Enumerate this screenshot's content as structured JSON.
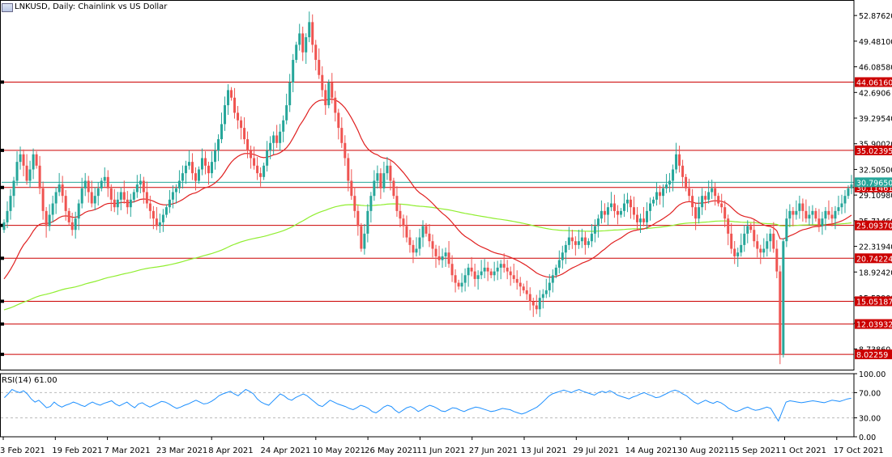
{
  "header": {
    "title": "LNKUSD, Daily:  Chainlink vs US Dollar"
  },
  "rsi": {
    "title": "RSI(14) 61.00"
  },
  "colors": {
    "bull": "#26a69a",
    "bear": "#ef5350",
    "ma_fast": "#e02020",
    "ma_slow": "#90ee30",
    "level_line": "#cc0000",
    "rsi_line": "#1e90ff",
    "current_price_line": "#26a69a"
  },
  "chart_data": {
    "type": "candlestick",
    "title": "LNKUSD, Daily:  Chainlink vs US Dollar",
    "ylim": [
      6.0,
      54.5
    ],
    "y_ticks": [
      "52.87620",
      "49.48100",
      "46.08580",
      "42.6906",
      "39.29540",
      "35.90020",
      "32.50500",
      "29.10980",
      "25.71460",
      "22.31940",
      "18.92420",
      "15.52900",
      "12.13380",
      "8.73860"
    ],
    "x_ticks": [
      "3 Feb 2021",
      "19 Feb 2021",
      "7 Mar 2021",
      "23 Mar 2021",
      "8 Apr 2021",
      "24 Apr 2021",
      "10 May 2021",
      "26 May 2021",
      "11 Jun 2021",
      "27 Jun 2021",
      "13 Jul 2021",
      "29 Jul 2021",
      "14 Aug 2021",
      "30 Aug 2021",
      "15 Sep 2021",
      "1 Oct 2021",
      "17 Oct 2021"
    ],
    "levels": [
      44.0616,
      35.02395,
      30.11461,
      25.0937,
      20.74224,
      15.05187,
      12.03932,
      8.02259
    ],
    "level_labels": [
      "44.06160",
      "35.02395",
      "30.11461",
      "25.09370",
      "20.74224",
      "15.05187",
      "12.03932",
      "8.02259"
    ],
    "current_price": 30.7965,
    "current_price_label": "30.79650",
    "closes": [
      25.5,
      27.0,
      29.0,
      31.0,
      33.5,
      34.5,
      33.0,
      31.0,
      32.5,
      34.5,
      33.0,
      30.0,
      27.0,
      25.0,
      26.5,
      28.0,
      29.5,
      30.5,
      29.0,
      27.0,
      25.5,
      24.5,
      26.0,
      28.0,
      30.0,
      31.0,
      29.5,
      28.0,
      29.0,
      30.0,
      31.0,
      31.5,
      30.0,
      28.5,
      27.5,
      28.5,
      29.5,
      28.5,
      27.5,
      28.5,
      29.5,
      30.5,
      31.0,
      29.5,
      28.0,
      27.0,
      26.0,
      25.0,
      25.5,
      26.5,
      27.5,
      28.5,
      29.5,
      30.0,
      31.0,
      32.0,
      33.0,
      33.5,
      32.0,
      31.0,
      32.5,
      34.0,
      33.0,
      32.0,
      33.5,
      35.0,
      36.5,
      38.5,
      41.0,
      43.0,
      42.0,
      40.0,
      39.0,
      38.0,
      36.5,
      35.0,
      34.0,
      33.0,
      32.0,
      31.5,
      33.0,
      35.0,
      36.0,
      37.0,
      36.0,
      37.5,
      39.0,
      41.0,
      44.0,
      47.0,
      49.0,
      50.5,
      48.0,
      50.0,
      52.0,
      49.0,
      47.0,
      45.0,
      43.0,
      41.0,
      44.0,
      42.0,
      40.0,
      38.0,
      36.0,
      34.0,
      31.0,
      29.0,
      27.0,
      25.0,
      22.0,
      24.0,
      27.0,
      29.0,
      31.0,
      32.0,
      30.0,
      32.0,
      33.0,
      31.0,
      29.0,
      27.0,
      26.0,
      25.0,
      23.5,
      22.5,
      21.5,
      22.0,
      23.5,
      25.0,
      24.0,
      23.0,
      22.0,
      21.0,
      20.5,
      21.0,
      21.5,
      20.0,
      18.5,
      17.5,
      17.0,
      17.5,
      18.5,
      19.5,
      19.0,
      18.0,
      18.5,
      19.0,
      19.5,
      19.0,
      18.5,
      19.0,
      19.5,
      20.0,
      19.5,
      19.0,
      18.5,
      18.0,
      17.5,
      17.0,
      16.5,
      16.0,
      15.0,
      14.5,
      14.0,
      15.5,
      16.0,
      16.5,
      17.5,
      18.5,
      19.5,
      20.5,
      21.5,
      22.5,
      23.5,
      23.0,
      22.5,
      23.0,
      23.5,
      22.5,
      23.0,
      24.0,
      25.0,
      26.0,
      27.0,
      26.5,
      27.5,
      28.0,
      27.0,
      26.5,
      27.0,
      28.0,
      28.5,
      27.5,
      26.5,
      25.5,
      26.0,
      25.5,
      27.0,
      28.0,
      28.5,
      29.5,
      29.0,
      30.0,
      30.5,
      31.0,
      32.5,
      34.5,
      33.0,
      31.5,
      30.0,
      29.0,
      27.5,
      26.0,
      27.5,
      29.0,
      28.5,
      29.5,
      30.0,
      29.0,
      28.0,
      27.5,
      26.0,
      24.0,
      22.0,
      21.0,
      21.5,
      22.5,
      24.0,
      25.0,
      24.5,
      23.0,
      22.0,
      21.5,
      22.0,
      23.0,
      24.0,
      22.0,
      19.0,
      8.0,
      23.0,
      26.0,
      27.0,
      26.5,
      27.0,
      28.0,
      27.0,
      26.0,
      26.5,
      27.0,
      26.0,
      25.0,
      26.0,
      27.0,
      26.5,
      26.0,
      27.0,
      27.5,
      28.0,
      29.0,
      30.0,
      30.5
    ],
    "sma_fast_start": 17.5,
    "sma_slow_start": 13.8,
    "rsi_ylim": [
      0,
      100
    ],
    "rsi_ticks": [
      "100.00",
      "70.00",
      "30.00",
      "0.00"
    ],
    "rsi_values": [
      62,
      68,
      75,
      72,
      70,
      73,
      68,
      60,
      55,
      58,
      52,
      46,
      48,
      55,
      50,
      47,
      50,
      52,
      55,
      53,
      50,
      48,
      52,
      55,
      52,
      50,
      53,
      55,
      57,
      52,
      49,
      52,
      55,
      50,
      46,
      52,
      54,
      50,
      47,
      50,
      53,
      56,
      55,
      52,
      48,
      45,
      47,
      50,
      52,
      55,
      58,
      55,
      52,
      53,
      56,
      60,
      65,
      68,
      70,
      72,
      68,
      65,
      70,
      75,
      72,
      68,
      60,
      55,
      52,
      50,
      56,
      62,
      68,
      65,
      60,
      58,
      62,
      65,
      68,
      65,
      60,
      55,
      50,
      48,
      53,
      58,
      55,
      52,
      50,
      48,
      45,
      43,
      46,
      50,
      48,
      45,
      40,
      38,
      42,
      47,
      50,
      48,
      42,
      38,
      42,
      46,
      48,
      45,
      40,
      43,
      47,
      50,
      48,
      45,
      41,
      40,
      43,
      46,
      45,
      42,
      40,
      43,
      45,
      47,
      46,
      44,
      42,
      40,
      41,
      43,
      45,
      44,
      43,
      40,
      38,
      36,
      38,
      41,
      44,
      47,
      52,
      58,
      64,
      68,
      70,
      72,
      74,
      72,
      70,
      73,
      75,
      72,
      70,
      68,
      66,
      70,
      72,
      70,
      73,
      70,
      66,
      64,
      62,
      60,
      63,
      65,
      68,
      70,
      67,
      65,
      62,
      63,
      66,
      69,
      72,
      74,
      72,
      68,
      65,
      60,
      55,
      52,
      55,
      58,
      55,
      53,
      56,
      54,
      50,
      45,
      42,
      40,
      42,
      45,
      47,
      44,
      42,
      43,
      45,
      47,
      45,
      35,
      25,
      40,
      55,
      57,
      56,
      55,
      54,
      55,
      56,
      57,
      56,
      55,
      54,
      56,
      58,
      57,
      56,
      58,
      60,
      61
    ]
  },
  "x_axis": {
    "ticks": [
      "3 Feb 2021",
      "19 Feb 2021",
      "7 Mar 2021",
      "23 Mar 2021",
      "8 Apr 2021",
      "24 Apr 2021",
      "10 May 2021",
      "26 May 2021",
      "11 Jun 2021",
      "27 Jun 2021",
      "13 Jul 2021",
      "29 Jul 2021",
      "14 Aug 2021",
      "30 Aug 2021",
      "15 Sep 2021",
      "1 Oct 2021",
      "17 Oct 2021"
    ]
  }
}
